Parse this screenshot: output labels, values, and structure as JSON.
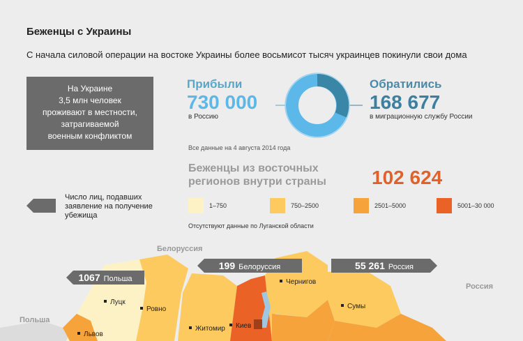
{
  "header": {
    "title": "Беженцы с Украины",
    "subtitle": "С начала силовой операции на востоке Украины более восьмисот тысяч украинцев покинули свои дома"
  },
  "info_box": {
    "lines": [
      "На Украине",
      "3,5 млн человек",
      "проживают в местности,",
      "затрагиваемой",
      "военным конфликтом"
    ]
  },
  "arrived": {
    "label": "Прибыли",
    "number": "730 000",
    "note": "в Россию"
  },
  "applied": {
    "label": "Обратились",
    "number": "168 677",
    "note": "в миграционную службу России"
  },
  "date_note": "Все данные на 4 августа 2014 года",
  "internal": {
    "lines": [
      "Беженцы из восточных",
      "регионов внутри страны"
    ],
    "number": "102 624"
  },
  "legend": {
    "items": [
      {
        "label": "1–750",
        "color": "#fdf2c6"
      },
      {
        "label": "750–2500",
        "color": "#fcca5e"
      },
      {
        "label": "2501–5000",
        "color": "#f5a33a"
      },
      {
        "label": "5001–30 000",
        "color": "#ea6226"
      }
    ],
    "missing_note": "Отсутствуют данные по Луганской области"
  },
  "asylum_note": {
    "lines": [
      "Число лиц, подавших",
      "заявление на получение",
      "убежища"
    ]
  },
  "map": {
    "countries": [
      "Белоруссия",
      "Россия",
      "Польша"
    ],
    "arrows": [
      {
        "number": "1067",
        "country": "Польша"
      },
      {
        "number": "199",
        "country": "Белоруссия"
      },
      {
        "number": "55 261",
        "country": "Россия"
      }
    ],
    "cities": [
      "Луцк",
      "Ровно",
      "Житомир",
      "Киев",
      "Чернигов",
      "Сумы",
      "Львов"
    ]
  }
}
